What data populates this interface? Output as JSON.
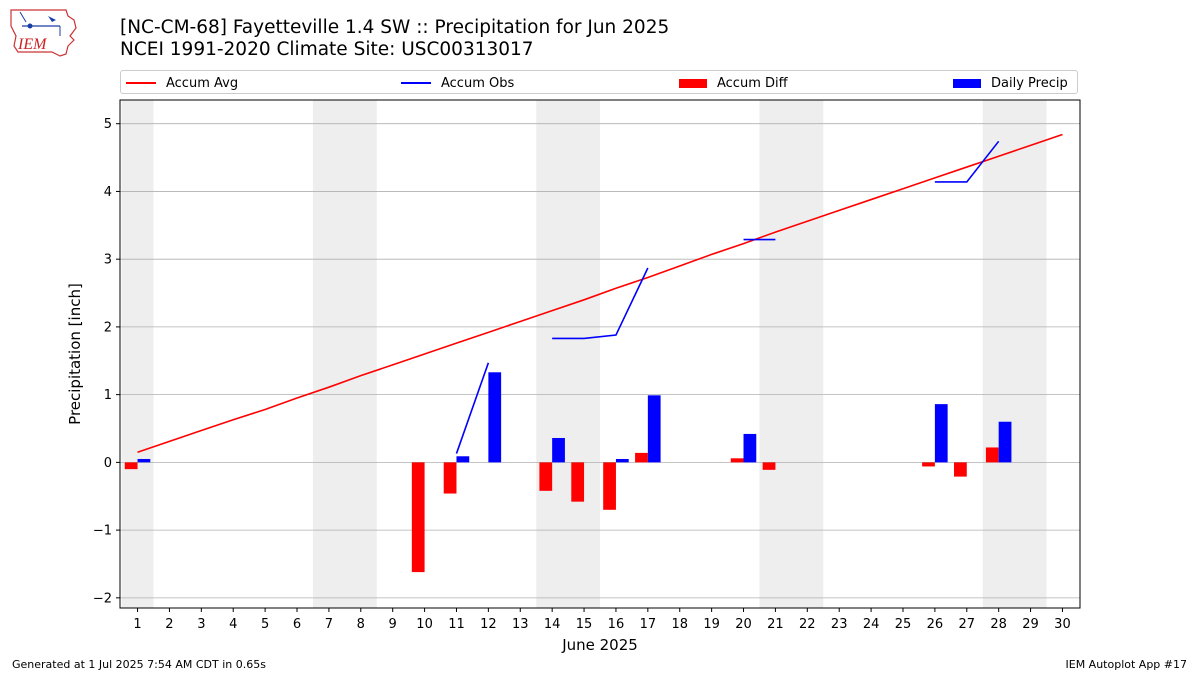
{
  "header": {
    "title_line1": "[NC-CM-68] Fayetteville 1.4 SW :: Precipitation for Jun 2025",
    "title_line2": "NCEI 1991-2020 Climate Site: USC00313017",
    "logo_text": "IEM"
  },
  "footer": {
    "left": "Generated at 1 Jul 2025 7:54 AM CDT in 0.65s",
    "right": "IEM Autoplot App #17"
  },
  "colors": {
    "accum_avg": "#ff0000",
    "accum_obs": "#0000ff",
    "accum_diff": "#ff0000",
    "daily_precip": "#0000ff",
    "weekend_shade": "#eeeeee",
    "grid": "#b0b0b0"
  },
  "chart_data": {
    "type": "bar",
    "xlabel": "June 2025",
    "ylabel": "Precipitation [inch]",
    "ylim": [
      -2.15,
      5.35
    ],
    "yticks": [
      -2,
      -1,
      0,
      1,
      2,
      3,
      4,
      5
    ],
    "ytick_labels": [
      "−2",
      "−1",
      "0",
      "1",
      "2",
      "3",
      "4",
      "5"
    ],
    "x": [
      1,
      2,
      3,
      4,
      5,
      6,
      7,
      8,
      9,
      10,
      11,
      12,
      13,
      14,
      15,
      16,
      17,
      18,
      19,
      20,
      21,
      22,
      23,
      24,
      25,
      26,
      27,
      28,
      29,
      30
    ],
    "grid": "y",
    "legend_placement": "top",
    "weekend_days": [
      1,
      7,
      8,
      14,
      15,
      21,
      22,
      28,
      29
    ],
    "legend": [
      "Accum Avg",
      "Accum Obs",
      "Accum Diff",
      "Daily Precip"
    ],
    "series": [
      {
        "name": "Accum Avg",
        "type": "line",
        "values": [
          0.15,
          0.31,
          0.47,
          0.63,
          0.78,
          0.95,
          1.11,
          1.28,
          1.44,
          1.6,
          1.76,
          1.92,
          2.08,
          2.24,
          2.4,
          2.57,
          2.73,
          2.9,
          3.07,
          3.23,
          3.4,
          3.56,
          3.72,
          3.88,
          4.04,
          4.2,
          4.36,
          4.52,
          4.68,
          4.84
        ]
      },
      {
        "name": "Accum Obs",
        "type": "line",
        "values": [
          null,
          null,
          null,
          null,
          null,
          null,
          null,
          null,
          null,
          null,
          0.13,
          1.47,
          null,
          1.83,
          1.83,
          1.88,
          2.87,
          null,
          null,
          3.29,
          3.29,
          null,
          null,
          null,
          null,
          4.14,
          4.14,
          4.74,
          null,
          null
        ]
      },
      {
        "name": "Accum Diff",
        "type": "bar",
        "values": [
          -0.1,
          0,
          0,
          0,
          0,
          0,
          0,
          0,
          0,
          -1.62,
          -0.46,
          0,
          0,
          -0.42,
          -0.58,
          -0.7,
          0.14,
          0,
          0,
          0.06,
          -0.11,
          0,
          0,
          0,
          0,
          -0.06,
          -0.21,
          0.22,
          0,
          0
        ]
      },
      {
        "name": "Daily Precip",
        "type": "bar",
        "values": [
          0.05,
          0,
          0,
          0,
          0,
          0,
          0,
          0,
          0,
          0,
          0.09,
          1.33,
          0,
          0.36,
          0,
          0.05,
          0.99,
          0,
          0,
          0.42,
          0,
          0,
          0,
          0,
          0,
          0.86,
          0,
          0.6,
          0,
          0
        ]
      }
    ]
  }
}
